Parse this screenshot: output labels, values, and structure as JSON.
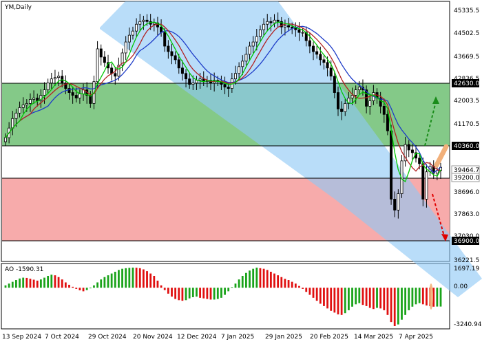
{
  "chart": {
    "symbol_label": "YM,Daily",
    "ao_label": "AO -1590.31"
  },
  "chart_data": [
    {
      "type": "candlestick",
      "title": "YM,Daily",
      "y_ticks": [
        "45335.5",
        "44502.5",
        "43669.5",
        "42836.5",
        "42003.5",
        "41170.5",
        "40337.5",
        "39464.7",
        "38696.0",
        "37863.0",
        "37030.0",
        "36221.5"
      ],
      "ylim": [
        36221.5,
        45335.5
      ],
      "x_ticks": [
        "13 Sep 2024",
        "7 Oct 2024",
        "29 Oct 2024",
        "20 Nov 2024",
        "12 Dec 2024",
        "7 Jan 2025",
        "29 Jan 2025",
        "20 Feb 2025",
        "14 Mar 2025",
        "7 Apr 2025"
      ],
      "price_labels": {
        "upper": "42630.0",
        "middle": "40360.0",
        "current": "39464.7",
        "lower": "39200.0",
        "bottom": "36900.0"
      },
      "zones": [
        {
          "name": "green-zone",
          "from": 40360.0,
          "to": 42630.0,
          "color": "#6fbf73"
        },
        {
          "name": "red-zone",
          "from": 36900.0,
          "to": 39200.0,
          "color": "#f7a6a6"
        }
      ],
      "channel_color": "#8ec8f5",
      "forecast": {
        "up_target": 42630.0,
        "down_target": 36900.0
      },
      "series": [
        {
          "key": "close",
          "color": "#000000"
        },
        {
          "key": "ma_fast",
          "color": "#00c800"
        },
        {
          "key": "ma_mid",
          "color": "#b22222"
        },
        {
          "key": "ma_slow",
          "color": "#1e3cc8"
        }
      ],
      "closes": [
        40550,
        40900,
        41250,
        41450,
        41650,
        41750,
        41800,
        41950,
        42000,
        41900,
        42100,
        42300,
        42550,
        42700,
        42750,
        42800,
        42550,
        42350,
        42200,
        42100,
        42000,
        42150,
        42300,
        42100,
        41800,
        42600,
        43800,
        43500,
        43300,
        43100,
        42900,
        42800,
        43200,
        43650,
        44050,
        44300,
        44450,
        44700,
        44800,
        44850,
        44800,
        44700,
        44750,
        44600,
        44400,
        43900,
        43700,
        43550,
        43400,
        43100,
        42900,
        42700,
        42500,
        42550,
        42650,
        42700,
        42600,
        42650,
        42550,
        42650,
        42600,
        42500,
        42400,
        42350,
        42700,
        42900,
        43150,
        43350,
        43600,
        43900,
        44050,
        44250,
        44500,
        44700,
        44800,
        44750,
        44850,
        44800,
        44600,
        44650,
        44600,
        44550,
        44500,
        44400,
        44400,
        44100,
        43900,
        43700,
        43600,
        43400,
        43300,
        43100,
        42800,
        42200,
        41600,
        41500,
        41800,
        42000,
        42100,
        42300,
        42400,
        42300,
        41700,
        41900,
        42200,
        42000,
        41700,
        41400,
        40800,
        38300,
        37900,
        38500,
        39700,
        40300,
        40100,
        40000,
        39800,
        39600,
        38300,
        39300,
        39500,
        39250,
        39350,
        39465
      ],
      "ao": [
        200,
        350,
        500,
        650,
        780,
        850,
        830,
        760,
        680,
        600,
        700,
        850,
        1000,
        1100,
        1050,
        900,
        700,
        450,
        250,
        80,
        -100,
        -220,
        -300,
        -200,
        -50,
        200,
        450,
        700,
        900,
        1050,
        1200,
        1350,
        1500,
        1600,
        1650,
        1680,
        1700,
        1690,
        1650,
        1550,
        1400,
        1200,
        1000,
        600,
        200,
        -200,
        -500,
        -750,
        -950,
        -1050,
        -1100,
        -1050,
        -900,
        -800,
        -750,
        -850,
        -900,
        -950,
        -1000,
        -1000,
        -950,
        -850,
        -600,
        -300,
        50,
        350,
        700,
        1000,
        1250,
        1450,
        1600,
        1697,
        1650,
        1600,
        1500,
        1350,
        1200,
        1050,
        900,
        750,
        650,
        500,
        350,
        150,
        -100,
        -350,
        -600,
        -850,
        -1100,
        -1350,
        -1550,
        -1750,
        -1950,
        -2100,
        -2250,
        -2300,
        -2150,
        -1900,
        -1600,
        -1400,
        -1300,
        -1450,
        -1550,
        -1700,
        -1800,
        -1700,
        -1750,
        -1900,
        -2300,
        -2900,
        -3240,
        -3100,
        -2700,
        -2300,
        -1900,
        -1600,
        -1400,
        -1300,
        -1400,
        -1500,
        -1550,
        -1600,
        -1590,
        -1590
      ],
      "ao_ticks": [
        "1697.19",
        "0.00",
        "-3240.94"
      ],
      "ao_ylim": [
        -3240.94,
        1697.19
      ]
    }
  ]
}
